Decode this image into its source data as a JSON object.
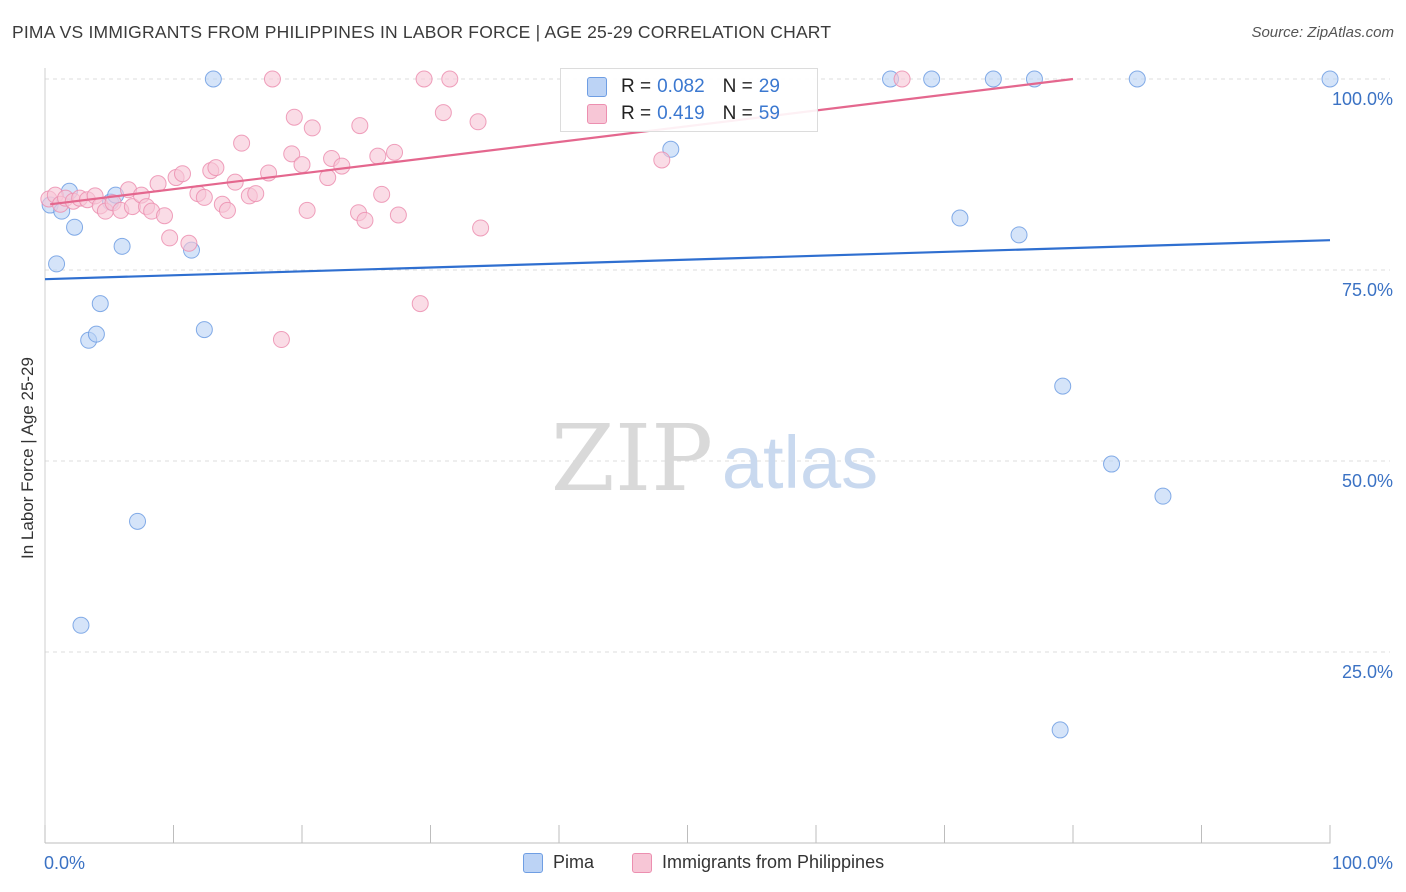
{
  "title": "PIMA VS IMMIGRANTS FROM PHILIPPINES IN LABOR FORCE | AGE 25-29 CORRELATION CHART",
  "source": "Source: ZipAtlas.com",
  "watermark": {
    "zip": "ZIP",
    "atlas": "atlas"
  },
  "stats": {
    "rows": [
      {
        "r_label": "R =",
        "r_value": "0.082",
        "n_label": "N =",
        "n_value": "29",
        "color": "#6f9ee3",
        "fill": "#bcd3f5"
      },
      {
        "r_label": "R =",
        "r_value": "0.419",
        "n_label": "N =",
        "n_value": "59",
        "color": "#ec8fb0",
        "fill": "#f7c6d6"
      }
    ]
  },
  "legend": {
    "items": [
      {
        "label": "Pima",
        "color": "#6f9ee3",
        "fill": "#bcd3f5"
      },
      {
        "label": "Immigrants from Philippines",
        "color": "#ec8fb0",
        "fill": "#f7c6d6"
      }
    ]
  },
  "chart_data": {
    "type": "scatter",
    "title": "PIMA VS IMMIGRANTS FROM PHILIPPINES IN LABOR FORCE | AGE 25-29 CORRELATION CHART",
    "xlabel": "",
    "ylabel": "In Labor Force | Age 25-29",
    "xlim": [
      0,
      100
    ],
    "ylim": [
      0,
      100
    ],
    "x_tick_labels": [
      "0.0%",
      "100.0%"
    ],
    "y_tick_labels": [
      "25.0%",
      "50.0%",
      "75.0%",
      "100.0%"
    ],
    "y_ticks": [
      25,
      50,
      75,
      100
    ],
    "grid": "horizontal dashed",
    "legend_position": "bottom",
    "series": [
      {
        "name": "Pima",
        "color": "#6f9ee3",
        "fill": "#bcd3f5",
        "r": 0.082,
        "n": 29,
        "trend": {
          "x": [
            0,
            100
          ],
          "y": [
            73.8,
            78.9
          ]
        },
        "points": [
          {
            "x": 0.4,
            "y": 83.5
          },
          {
            "x": 0.9,
            "y": 75.8
          },
          {
            "x": 1.3,
            "y": 82.7
          },
          {
            "x": 1.9,
            "y": 85.3
          },
          {
            "x": 2.3,
            "y": 80.6
          },
          {
            "x": 2.8,
            "y": 28.5
          },
          {
            "x": 3.4,
            "y": 65.8
          },
          {
            "x": 4.0,
            "y": 66.6
          },
          {
            "x": 4.3,
            "y": 70.6
          },
          {
            "x": 5.1,
            "y": 83.9
          },
          {
            "x": 5.5,
            "y": 84.8
          },
          {
            "x": 6.0,
            "y": 78.1
          },
          {
            "x": 7.2,
            "y": 42.1
          },
          {
            "x": 11.4,
            "y": 77.6
          },
          {
            "x": 12.4,
            "y": 67.2
          },
          {
            "x": 13.1,
            "y": 100
          },
          {
            "x": 48.7,
            "y": 90.8
          },
          {
            "x": 65.8,
            "y": 100
          },
          {
            "x": 69.0,
            "y": 100
          },
          {
            "x": 71.2,
            "y": 81.8
          },
          {
            "x": 73.8,
            "y": 100
          },
          {
            "x": 75.8,
            "y": 79.6
          },
          {
            "x": 77.0,
            "y": 100
          },
          {
            "x": 79.2,
            "y": 59.8
          },
          {
            "x": 79.0,
            "y": 14.8
          },
          {
            "x": 83.0,
            "y": 49.6
          },
          {
            "x": 85.0,
            "y": 100
          },
          {
            "x": 87.0,
            "y": 45.4
          },
          {
            "x": 100,
            "y": 100
          }
        ]
      },
      {
        "name": "Immigrants from Philippines",
        "color": "#ec8fb0",
        "fill": "#f7c6d6",
        "r": 0.419,
        "n": 59,
        "trend": {
          "x": [
            0.4,
            80.0
          ],
          "y": [
            83.6,
            100
          ]
        },
        "points": [
          {
            "x": 0.3,
            "y": 84.3
          },
          {
            "x": 0.8,
            "y": 84.8
          },
          {
            "x": 1.2,
            "y": 83.6
          },
          {
            "x": 1.6,
            "y": 84.4
          },
          {
            "x": 2.2,
            "y": 84.0
          },
          {
            "x": 2.7,
            "y": 84.4
          },
          {
            "x": 3.3,
            "y": 84.2
          },
          {
            "x": 3.9,
            "y": 84.7
          },
          {
            "x": 4.3,
            "y": 83.4
          },
          {
            "x": 4.7,
            "y": 82.7
          },
          {
            "x": 5.3,
            "y": 83.8
          },
          {
            "x": 5.9,
            "y": 82.8
          },
          {
            "x": 6.5,
            "y": 85.5
          },
          {
            "x": 6.8,
            "y": 83.3
          },
          {
            "x": 7.5,
            "y": 84.8
          },
          {
            "x": 7.9,
            "y": 83.3
          },
          {
            "x": 8.3,
            "y": 82.7
          },
          {
            "x": 8.8,
            "y": 86.3
          },
          {
            "x": 9.3,
            "y": 82.1
          },
          {
            "x": 9.7,
            "y": 79.2
          },
          {
            "x": 10.2,
            "y": 87.1
          },
          {
            "x": 10.7,
            "y": 87.6
          },
          {
            "x": 11.2,
            "y": 78.5
          },
          {
            "x": 11.9,
            "y": 85.0
          },
          {
            "x": 12.4,
            "y": 84.5
          },
          {
            "x": 12.9,
            "y": 88.0
          },
          {
            "x": 13.3,
            "y": 88.4
          },
          {
            "x": 13.8,
            "y": 83.6
          },
          {
            "x": 14.2,
            "y": 82.8
          },
          {
            "x": 14.8,
            "y": 86.5
          },
          {
            "x": 15.3,
            "y": 91.6
          },
          {
            "x": 15.9,
            "y": 84.7
          },
          {
            "x": 16.4,
            "y": 85.0
          },
          {
            "x": 17.4,
            "y": 87.7
          },
          {
            "x": 17.7,
            "y": 100
          },
          {
            "x": 18.4,
            "y": 65.9
          },
          {
            "x": 19.2,
            "y": 90.2
          },
          {
            "x": 19.4,
            "y": 95.0
          },
          {
            "x": 20.0,
            "y": 88.8
          },
          {
            "x": 20.4,
            "y": 82.8
          },
          {
            "x": 20.8,
            "y": 93.6
          },
          {
            "x": 22.0,
            "y": 87.1
          },
          {
            "x": 22.3,
            "y": 89.6
          },
          {
            "x": 23.1,
            "y": 88.6
          },
          {
            "x": 24.4,
            "y": 82.5
          },
          {
            "x": 24.5,
            "y": 93.9
          },
          {
            "x": 24.9,
            "y": 81.5
          },
          {
            "x": 25.9,
            "y": 89.9
          },
          {
            "x": 26.2,
            "y": 84.9
          },
          {
            "x": 27.2,
            "y": 90.4
          },
          {
            "x": 27.5,
            "y": 82.2
          },
          {
            "x": 29.2,
            "y": 70.6
          },
          {
            "x": 29.5,
            "y": 100
          },
          {
            "x": 31.0,
            "y": 95.6
          },
          {
            "x": 31.5,
            "y": 100
          },
          {
            "x": 33.7,
            "y": 94.4
          },
          {
            "x": 33.9,
            "y": 80.5
          },
          {
            "x": 48.0,
            "y": 89.4
          },
          {
            "x": 66.7,
            "y": 100
          }
        ]
      }
    ]
  }
}
